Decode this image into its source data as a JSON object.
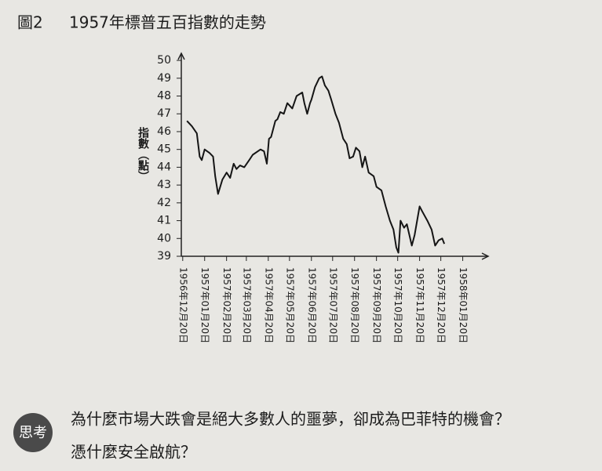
{
  "chart_data": {
    "type": "line",
    "figure_label": "圖2",
    "title": "1957年標普五百指數的走勢",
    "y_label": "指數（點）",
    "color": "#151515",
    "x": [
      "1956-12-26",
      "1957-01-02",
      "1957-01-09",
      "1957-01-13",
      "1957-01-16",
      "1957-01-20",
      "1957-01-27",
      "1957-02-01",
      "1957-02-04",
      "1957-02-08",
      "1957-02-14",
      "1957-02-20",
      "1957-02-25",
      "1957-03-02",
      "1957-03-06",
      "1957-03-11",
      "1957-03-17",
      "1957-03-24",
      "1957-03-29",
      "1957-04-09",
      "1957-04-14",
      "1957-04-18",
      "1957-04-21",
      "1957-04-24",
      "1957-04-30",
      "1957-05-03",
      "1957-05-07",
      "1957-05-12",
      "1957-05-17",
      "1957-05-24",
      "1957-05-30",
      "1957-06-07",
      "1957-06-10",
      "1957-06-14",
      "1957-06-18",
      "1957-06-20",
      "1957-06-25",
      "1957-07-01",
      "1957-07-05",
      "1957-07-09",
      "1957-07-14",
      "1957-07-18",
      "1957-07-24",
      "1957-07-29",
      "1957-08-04",
      "1957-08-09",
      "1957-08-13",
      "1957-08-18",
      "1957-08-22",
      "1957-08-27",
      "1957-08-31",
      "1957-09-04",
      "1957-09-09",
      "1957-09-16",
      "1957-09-20",
      "1957-09-27",
      "1957-10-03",
      "1957-10-09",
      "1957-10-14",
      "1957-10-18",
      "1957-10-21",
      "1957-10-24",
      "1957-10-29",
      "1957-11-02",
      "1957-11-09",
      "1957-11-13",
      "1957-11-20",
      "1957-11-24",
      "1957-12-01",
      "1957-12-07",
      "1957-12-12",
      "1957-12-17",
      "1957-12-22",
      "1957-12-25"
    ],
    "values": [
      46.6,
      46.3,
      45.9,
      44.6,
      44.4,
      45.0,
      44.8,
      44.6,
      43.5,
      42.5,
      43.3,
      43.7,
      43.4,
      44.2,
      43.9,
      44.1,
      44.0,
      44.4,
      44.7,
      45.0,
      44.9,
      44.2,
      45.6,
      45.7,
      46.6,
      46.7,
      47.1,
      47.0,
      47.6,
      47.3,
      48.0,
      48.2,
      47.6,
      47.0,
      47.6,
      47.8,
      48.5,
      49.0,
      49.1,
      48.6,
      48.3,
      47.8,
      47.0,
      46.5,
      45.6,
      45.3,
      44.5,
      44.6,
      45.1,
      44.9,
      44.0,
      44.6,
      43.7,
      43.5,
      42.9,
      42.7,
      41.8,
      41.0,
      40.5,
      39.5,
      39.2,
      41.0,
      40.6,
      40.8,
      39.6,
      40.2,
      41.8,
      41.5,
      41.0,
      40.5,
      39.6,
      39.9,
      40.0,
      39.7
    ],
    "xlim": [
      "1956-12-18",
      "1958-02-25"
    ],
    "xticks": [
      {
        "value": "1956-12-20",
        "label": "1956年12月20日"
      },
      {
        "value": "1957-01-20",
        "label": "1957年01月20日"
      },
      {
        "value": "1957-02-20",
        "label": "1957年02月20日"
      },
      {
        "value": "1957-03-20",
        "label": "1957年03月20日"
      },
      {
        "value": "1957-04-20",
        "label": "1957年04月20日"
      },
      {
        "value": "1957-05-20",
        "label": "1957年05月20日"
      },
      {
        "value": "1957-06-20",
        "label": "1957年06月20日"
      },
      {
        "value": "1957-07-20",
        "label": "1957年07月20日"
      },
      {
        "value": "1957-08-20",
        "label": "1957年08月20日"
      },
      {
        "value": "1957-09-20",
        "label": "1957年09月20日"
      },
      {
        "value": "1957-10-20",
        "label": "1957年10月20日"
      },
      {
        "value": "1957-11-20",
        "label": "1957年11月20日"
      },
      {
        "value": "1957-12-20",
        "label": "1957年12月20日"
      },
      {
        "value": "1958-01-20",
        "label": "1958年01月20日"
      }
    ],
    "ylim": [
      39,
      50.4
    ],
    "yticks": [
      39,
      40,
      41,
      42,
      43,
      44,
      45,
      46,
      47,
      48,
      49,
      50
    ],
    "grid": false
  },
  "footer": {
    "badge": "思考",
    "lines": [
      "為什麼市場大跌會是絕大多數人的噩夢，卻成為巴菲特的機會？",
      "憑什麼安全啟航？"
    ]
  }
}
